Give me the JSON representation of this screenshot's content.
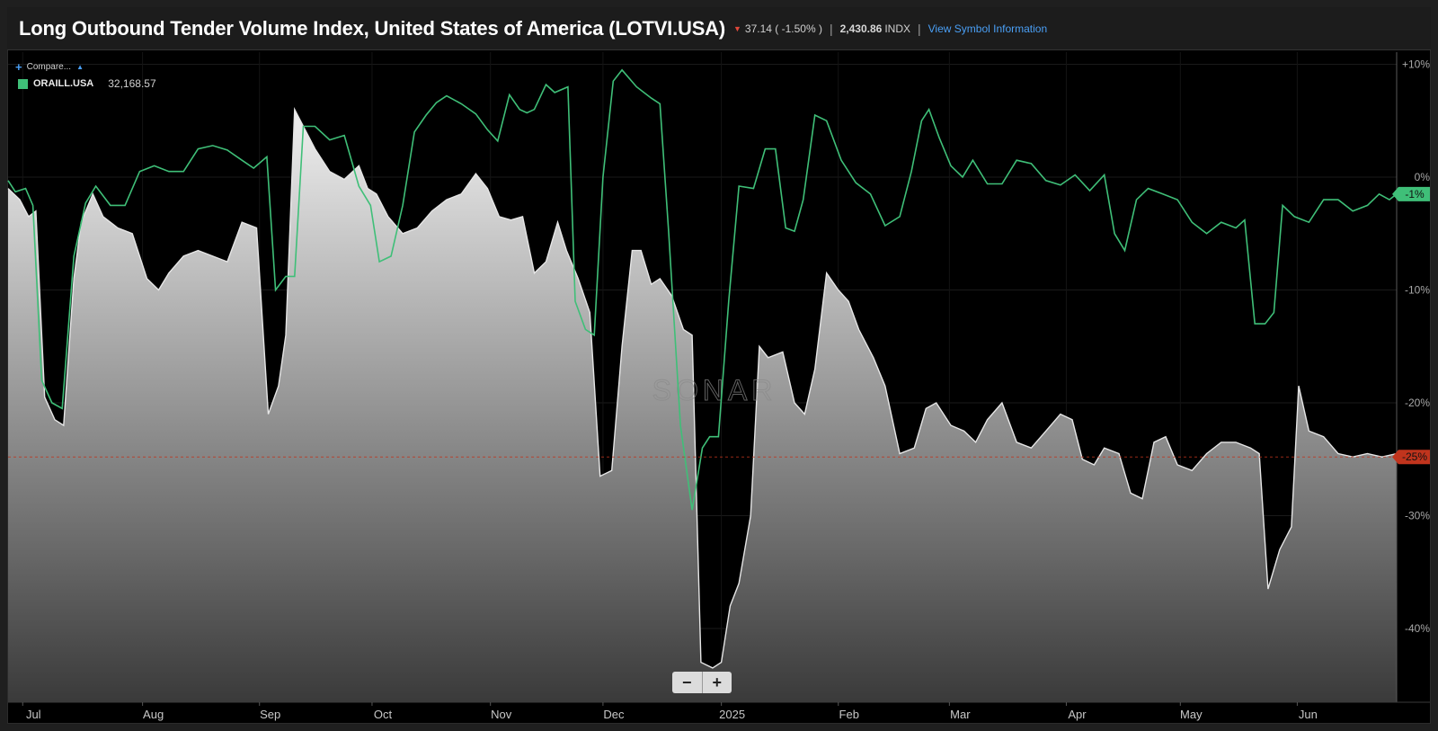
{
  "header": {
    "title": "Long Outbound Tender Volume Index, United States of America (LOTVI.USA)",
    "change": "37.14 ( -1.50% )",
    "last_value": "2,430.86",
    "unit": "INDX",
    "info_link": "View Symbol Information"
  },
  "compare": {
    "label": "Compare..."
  },
  "legend": {
    "symbol": "ORAILL.USA",
    "value": "32,168.57"
  },
  "watermark": "SONAR",
  "zoom": {
    "minus": "−",
    "plus": "+"
  },
  "colors": {
    "green_series": "#3fbf78",
    "area_line": "#e6e6e6",
    "badge_green": "#3fbf78",
    "badge_red": "#c0341d",
    "change_down": "#e0483a",
    "link": "#4a9ff5"
  },
  "chart_data": {
    "type": "area",
    "x_ticks": [
      "Jul",
      "Aug",
      "Sep",
      "Oct",
      "Nov",
      "Dec",
      "2025",
      "Feb",
      "Mar",
      "Apr",
      "May",
      "Jun"
    ],
    "y_ticks": [
      "+10%",
      "0%",
      "-10%",
      "-20%",
      "-30%",
      "-40%"
    ],
    "ylim": [
      -46.5,
      11
    ],
    "current_badges": [
      {
        "label": "-1%",
        "value": -1.5,
        "color": "#3fbf78"
      },
      {
        "label": "-25%",
        "value": -24.8,
        "color": "#c0341d"
      }
    ],
    "series": [
      {
        "name": "ORAILL.USA",
        "style": "line",
        "points": [
          [
            0,
            -0.3
          ],
          [
            0.5,
            -1.3
          ],
          [
            1.2,
            -1.0
          ],
          [
            1.7,
            -2.5
          ],
          [
            2.3,
            -18.0
          ],
          [
            3.0,
            -20.0
          ],
          [
            3.7,
            -20.5
          ],
          [
            4.5,
            -7.0
          ],
          [
            5.3,
            -2.3
          ],
          [
            6.0,
            -0.8
          ],
          [
            7.0,
            -2.5
          ],
          [
            8.0,
            -2.5
          ],
          [
            9.0,
            0.5
          ],
          [
            10.0,
            1.0
          ],
          [
            11.0,
            0.5
          ],
          [
            12.0,
            0.5
          ],
          [
            13.0,
            2.5
          ],
          [
            14.0,
            2.8
          ],
          [
            15.0,
            2.4
          ],
          [
            16.0,
            1.5
          ],
          [
            16.8,
            0.8
          ],
          [
            17.7,
            1.8
          ],
          [
            18.3,
            -10.0
          ],
          [
            19.0,
            -8.8
          ],
          [
            19.6,
            -8.8
          ],
          [
            20.2,
            4.5
          ],
          [
            21.0,
            4.5
          ],
          [
            22.0,
            3.3
          ],
          [
            23.0,
            3.7
          ],
          [
            24.0,
            -0.8
          ],
          [
            24.8,
            -2.5
          ],
          [
            25.4,
            -7.5
          ],
          [
            26.2,
            -7.0
          ],
          [
            27.0,
            -2.5
          ],
          [
            27.8,
            4.0
          ],
          [
            28.6,
            5.5
          ],
          [
            29.3,
            6.6
          ],
          [
            30.0,
            7.2
          ],
          [
            31.0,
            6.5
          ],
          [
            32.0,
            5.6
          ],
          [
            32.8,
            4.2
          ],
          [
            33.5,
            3.2
          ],
          [
            34.3,
            7.3
          ],
          [
            35.0,
            6.0
          ],
          [
            35.5,
            5.7
          ],
          [
            36.0,
            6.0
          ],
          [
            36.8,
            8.2
          ],
          [
            37.4,
            7.5
          ],
          [
            38.3,
            8.0
          ],
          [
            38.8,
            -11.0
          ],
          [
            39.5,
            -13.5
          ],
          [
            40.1,
            -14.0
          ],
          [
            40.7,
            0.0
          ],
          [
            41.4,
            8.5
          ],
          [
            42.0,
            9.5
          ],
          [
            43.0,
            8.0
          ],
          [
            44.0,
            7.0
          ],
          [
            44.6,
            6.5
          ],
          [
            45.2,
            -5.0
          ],
          [
            46.0,
            -22.0
          ],
          [
            46.8,
            -29.5
          ],
          [
            47.5,
            -24.0
          ],
          [
            48.0,
            -23.0
          ],
          [
            48.6,
            -23.0
          ],
          [
            49.3,
            -11.0
          ],
          [
            50.0,
            -0.8
          ],
          [
            51.0,
            -1.0
          ],
          [
            51.8,
            2.5
          ],
          [
            52.5,
            2.5
          ],
          [
            53.2,
            -4.5
          ],
          [
            53.8,
            -4.8
          ],
          [
            54.4,
            -2.0
          ],
          [
            55.2,
            5.5
          ],
          [
            56.0,
            5.0
          ],
          [
            57.0,
            1.5
          ],
          [
            58.0,
            -0.5
          ],
          [
            59.0,
            -1.5
          ],
          [
            60.0,
            -4.3
          ],
          [
            61.0,
            -3.5
          ],
          [
            61.8,
            0.5
          ],
          [
            62.5,
            5.0
          ],
          [
            63.0,
            6.0
          ],
          [
            63.7,
            3.5
          ],
          [
            64.5,
            1.0
          ],
          [
            65.3,
            0.0
          ],
          [
            66.0,
            1.5
          ],
          [
            67.0,
            -0.6
          ],
          [
            68.0,
            -0.6
          ],
          [
            69.0,
            1.5
          ],
          [
            70.0,
            1.2
          ],
          [
            71.0,
            -0.3
          ],
          [
            72.0,
            -0.7
          ],
          [
            73.0,
            0.2
          ],
          [
            74.0,
            -1.2
          ],
          [
            75.0,
            0.2
          ],
          [
            75.7,
            -5.0
          ],
          [
            76.4,
            -6.5
          ],
          [
            77.2,
            -2.0
          ],
          [
            78.0,
            -1.0
          ],
          [
            79.0,
            -1.5
          ],
          [
            80.0,
            -2.0
          ],
          [
            81.0,
            -4.0
          ],
          [
            82.0,
            -5.0
          ],
          [
            83.0,
            -4.0
          ],
          [
            84.0,
            -4.5
          ],
          [
            84.6,
            -3.8
          ],
          [
            85.3,
            -13.0
          ],
          [
            86.0,
            -13.0
          ],
          [
            86.6,
            -12.0
          ],
          [
            87.2,
            -2.5
          ],
          [
            88.0,
            -3.5
          ],
          [
            89.0,
            -4.0
          ],
          [
            90.0,
            -2.0
          ],
          [
            91.0,
            -2.0
          ],
          [
            92.0,
            -3.0
          ],
          [
            93.0,
            -2.5
          ],
          [
            93.8,
            -1.5
          ],
          [
            94.5,
            -2.0
          ],
          [
            95.0,
            -1.5
          ]
        ]
      },
      {
        "name": "LOTVI.USA",
        "style": "area",
        "points": [
          [
            0,
            -1.0
          ],
          [
            0.8,
            -2.0
          ],
          [
            1.4,
            -3.5
          ],
          [
            1.9,
            -3.0
          ],
          [
            2.5,
            -19.5
          ],
          [
            3.2,
            -21.5
          ],
          [
            3.8,
            -22.0
          ],
          [
            4.5,
            -9.0
          ],
          [
            5.0,
            -4.0
          ],
          [
            5.8,
            -1.5
          ],
          [
            6.5,
            -3.5
          ],
          [
            7.5,
            -4.5
          ],
          [
            8.5,
            -5.0
          ],
          [
            9.5,
            -9.0
          ],
          [
            10.3,
            -10.0
          ],
          [
            11.0,
            -8.5
          ],
          [
            12.0,
            -7.0
          ],
          [
            13.0,
            -6.5
          ],
          [
            14.0,
            -7.0
          ],
          [
            15.0,
            -7.5
          ],
          [
            16.0,
            -4.0
          ],
          [
            17.0,
            -4.5
          ],
          [
            17.8,
            -21.0
          ],
          [
            18.5,
            -18.5
          ],
          [
            19.0,
            -14.0
          ],
          [
            19.6,
            6.0
          ],
          [
            20.2,
            4.5
          ],
          [
            21.0,
            2.5
          ],
          [
            22.0,
            0.5
          ],
          [
            23.0,
            -0.2
          ],
          [
            24.0,
            1.0
          ],
          [
            24.6,
            -1.0
          ],
          [
            25.2,
            -1.5
          ],
          [
            26.0,
            -3.5
          ],
          [
            27.0,
            -5.0
          ],
          [
            28.0,
            -4.5
          ],
          [
            29.0,
            -3.0
          ],
          [
            30.0,
            -2.0
          ],
          [
            31.0,
            -1.5
          ],
          [
            32.0,
            0.3
          ],
          [
            32.8,
            -1.0
          ],
          [
            33.6,
            -3.5
          ],
          [
            34.4,
            -3.8
          ],
          [
            35.2,
            -3.5
          ],
          [
            36.0,
            -8.5
          ],
          [
            36.8,
            -7.5
          ],
          [
            37.6,
            -4.0
          ],
          [
            38.2,
            -6.5
          ],
          [
            39.0,
            -9.0
          ],
          [
            39.8,
            -12.0
          ],
          [
            40.5,
            -26.5
          ],
          [
            41.3,
            -26.0
          ],
          [
            42.0,
            -15.0
          ],
          [
            42.7,
            -6.5
          ],
          [
            43.3,
            -6.5
          ],
          [
            44.0,
            -9.5
          ],
          [
            44.6,
            -9.0
          ],
          [
            45.4,
            -10.5
          ],
          [
            46.2,
            -13.5
          ],
          [
            46.8,
            -14.0
          ],
          [
            47.4,
            -43.0
          ],
          [
            48.2,
            -43.5
          ],
          [
            48.8,
            -43.0
          ],
          [
            49.4,
            -38.0
          ],
          [
            50.0,
            -36.0
          ],
          [
            50.8,
            -30.0
          ],
          [
            51.4,
            -15.0
          ],
          [
            52.0,
            -16.0
          ],
          [
            53.0,
            -15.5
          ],
          [
            53.8,
            -20.0
          ],
          [
            54.5,
            -21.0
          ],
          [
            55.2,
            -17.0
          ],
          [
            56.0,
            -8.5
          ],
          [
            56.8,
            -10.0
          ],
          [
            57.5,
            -11.0
          ],
          [
            58.2,
            -13.5
          ],
          [
            59.2,
            -16.0
          ],
          [
            60.0,
            -18.5
          ],
          [
            61.0,
            -24.5
          ],
          [
            62.0,
            -24.0
          ],
          [
            62.8,
            -20.5
          ],
          [
            63.5,
            -20.0
          ],
          [
            64.5,
            -22.0
          ],
          [
            65.4,
            -22.5
          ],
          [
            66.2,
            -23.5
          ],
          [
            67.0,
            -21.5
          ],
          [
            68.0,
            -20.0
          ],
          [
            69.0,
            -23.5
          ],
          [
            70.0,
            -24.0
          ],
          [
            71.0,
            -22.5
          ],
          [
            72.0,
            -21.0
          ],
          [
            72.8,
            -21.5
          ],
          [
            73.5,
            -25.0
          ],
          [
            74.3,
            -25.5
          ],
          [
            75.0,
            -24.0
          ],
          [
            76.0,
            -24.5
          ],
          [
            76.8,
            -28.0
          ],
          [
            77.6,
            -28.5
          ],
          [
            78.4,
            -23.5
          ],
          [
            79.2,
            -23.0
          ],
          [
            80.0,
            -25.5
          ],
          [
            81.0,
            -26.0
          ],
          [
            82.0,
            -24.5
          ],
          [
            83.0,
            -23.5
          ],
          [
            84.0,
            -23.5
          ],
          [
            85.0,
            -24.0
          ],
          [
            85.6,
            -24.5
          ],
          [
            86.2,
            -36.5
          ],
          [
            87.0,
            -33.0
          ],
          [
            87.8,
            -31.0
          ],
          [
            88.3,
            -18.5
          ],
          [
            89.0,
            -22.5
          ],
          [
            90.0,
            -23.0
          ],
          [
            91.0,
            -24.5
          ],
          [
            92.0,
            -24.8
          ],
          [
            93.0,
            -24.5
          ],
          [
            94.0,
            -24.8
          ],
          [
            95.0,
            -24.5
          ]
        ]
      }
    ]
  }
}
